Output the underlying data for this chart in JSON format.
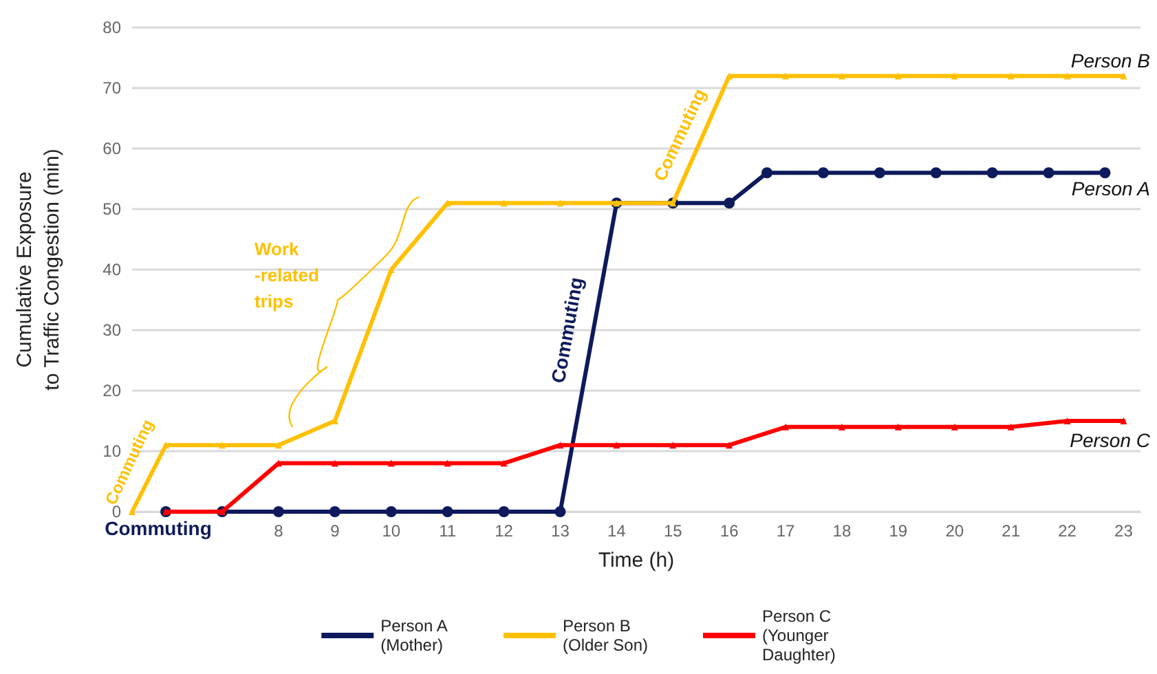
{
  "chart_data": {
    "type": "line",
    "xlabel": "Time (h)",
    "ylabel": "Cumulative Exposure\nto Traffic Congestion (min)",
    "xlim": [
      5.4,
      23.3
    ],
    "xticks": [
      8,
      9,
      10,
      11,
      12,
      13,
      14,
      15,
      16,
      17,
      18,
      19,
      20,
      21,
      22,
      23
    ],
    "ylim": [
      0,
      80
    ],
    "yticks": [
      0,
      10,
      20,
      30,
      40,
      50,
      60,
      70,
      80
    ],
    "grid": "y",
    "legend": "bottom",
    "line_style": "solid",
    "series": [
      {
        "name": "Person A\n(Mother)",
        "color": "#0d1a5c",
        "marker": "circle",
        "x": [
          6,
          7,
          8,
          9,
          10,
          11,
          12,
          13,
          14,
          15,
          16,
          16.67,
          17.67,
          18.67,
          19.67,
          20.67,
          21.67,
          22.67
        ],
        "values": [
          0,
          0,
          0,
          0,
          0,
          0,
          0,
          0,
          51,
          51,
          51,
          56,
          56,
          56,
          56,
          56,
          56,
          56
        ]
      },
      {
        "name": "Person B\n(Older Son)",
        "color": "#ffc000",
        "marker": "triangle",
        "x": [
          5.4,
          6,
          7,
          8,
          9,
          10,
          11,
          12,
          13,
          14,
          15,
          16,
          17,
          18,
          19,
          20,
          21,
          22,
          23
        ],
        "values": [
          0,
          11,
          11,
          11,
          15,
          40,
          51,
          51,
          51,
          51,
          51,
          72,
          72,
          72,
          72,
          72,
          72,
          72,
          72
        ]
      },
      {
        "name": "Person C\n(Younger\nDaughter)",
        "color": "#ff0000",
        "marker": "triangle",
        "x": [
          6,
          7,
          8,
          9,
          10,
          11,
          12,
          13,
          14,
          15,
          16,
          17,
          18,
          19,
          20,
          21,
          22,
          23
        ],
        "values": [
          0,
          0,
          8,
          8,
          8,
          8,
          8,
          11,
          11,
          11,
          11,
          14,
          14,
          14,
          14,
          14,
          15,
          15
        ]
      }
    ],
    "annotations": [
      "Commuting",
      "Commuting",
      "Commuting",
      "Commuting",
      "Work\n-related\ntrips",
      "Person B",
      "Person A",
      "Person C"
    ]
  }
}
